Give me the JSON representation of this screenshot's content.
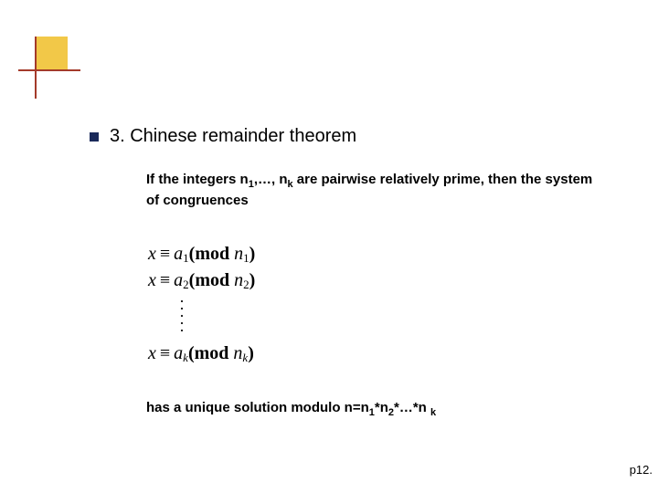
{
  "decor": {
    "yellow": "#f2c848",
    "line": "#a43a2a",
    "bullet": "#1a2a5a"
  },
  "heading": "3. Chinese remainder theorem",
  "intro": {
    "pre": "If the integers n",
    "sub1": "1",
    "mid1": ",…, n",
    "sub2": "k",
    "post": " are pairwise relatively prime, then the system of congruences"
  },
  "equations": [
    {
      "x": "x",
      "eq": "≡",
      "a": "a",
      "ai": "1",
      "mod_open": "(mod",
      "n": "n",
      "ni": "1",
      "close": ")"
    },
    {
      "x": "x",
      "eq": "≡",
      "a": "a",
      "ai": "2",
      "mod_open": "(mod",
      "n": "n",
      "ni": "2",
      "close": ")"
    },
    {
      "x": "x",
      "eq": "≡",
      "a": "a",
      "ai": "k",
      "mod_open": "(mod",
      "n": "n",
      "ni": "k",
      "close": ")"
    }
  ],
  "closing": {
    "pre": "has a unique solution modulo n=n",
    "s1": "1",
    "m1": "*n",
    "s2": "2",
    "m2": "*…*n ",
    "s3": "k"
  },
  "pagenum": "p12."
}
